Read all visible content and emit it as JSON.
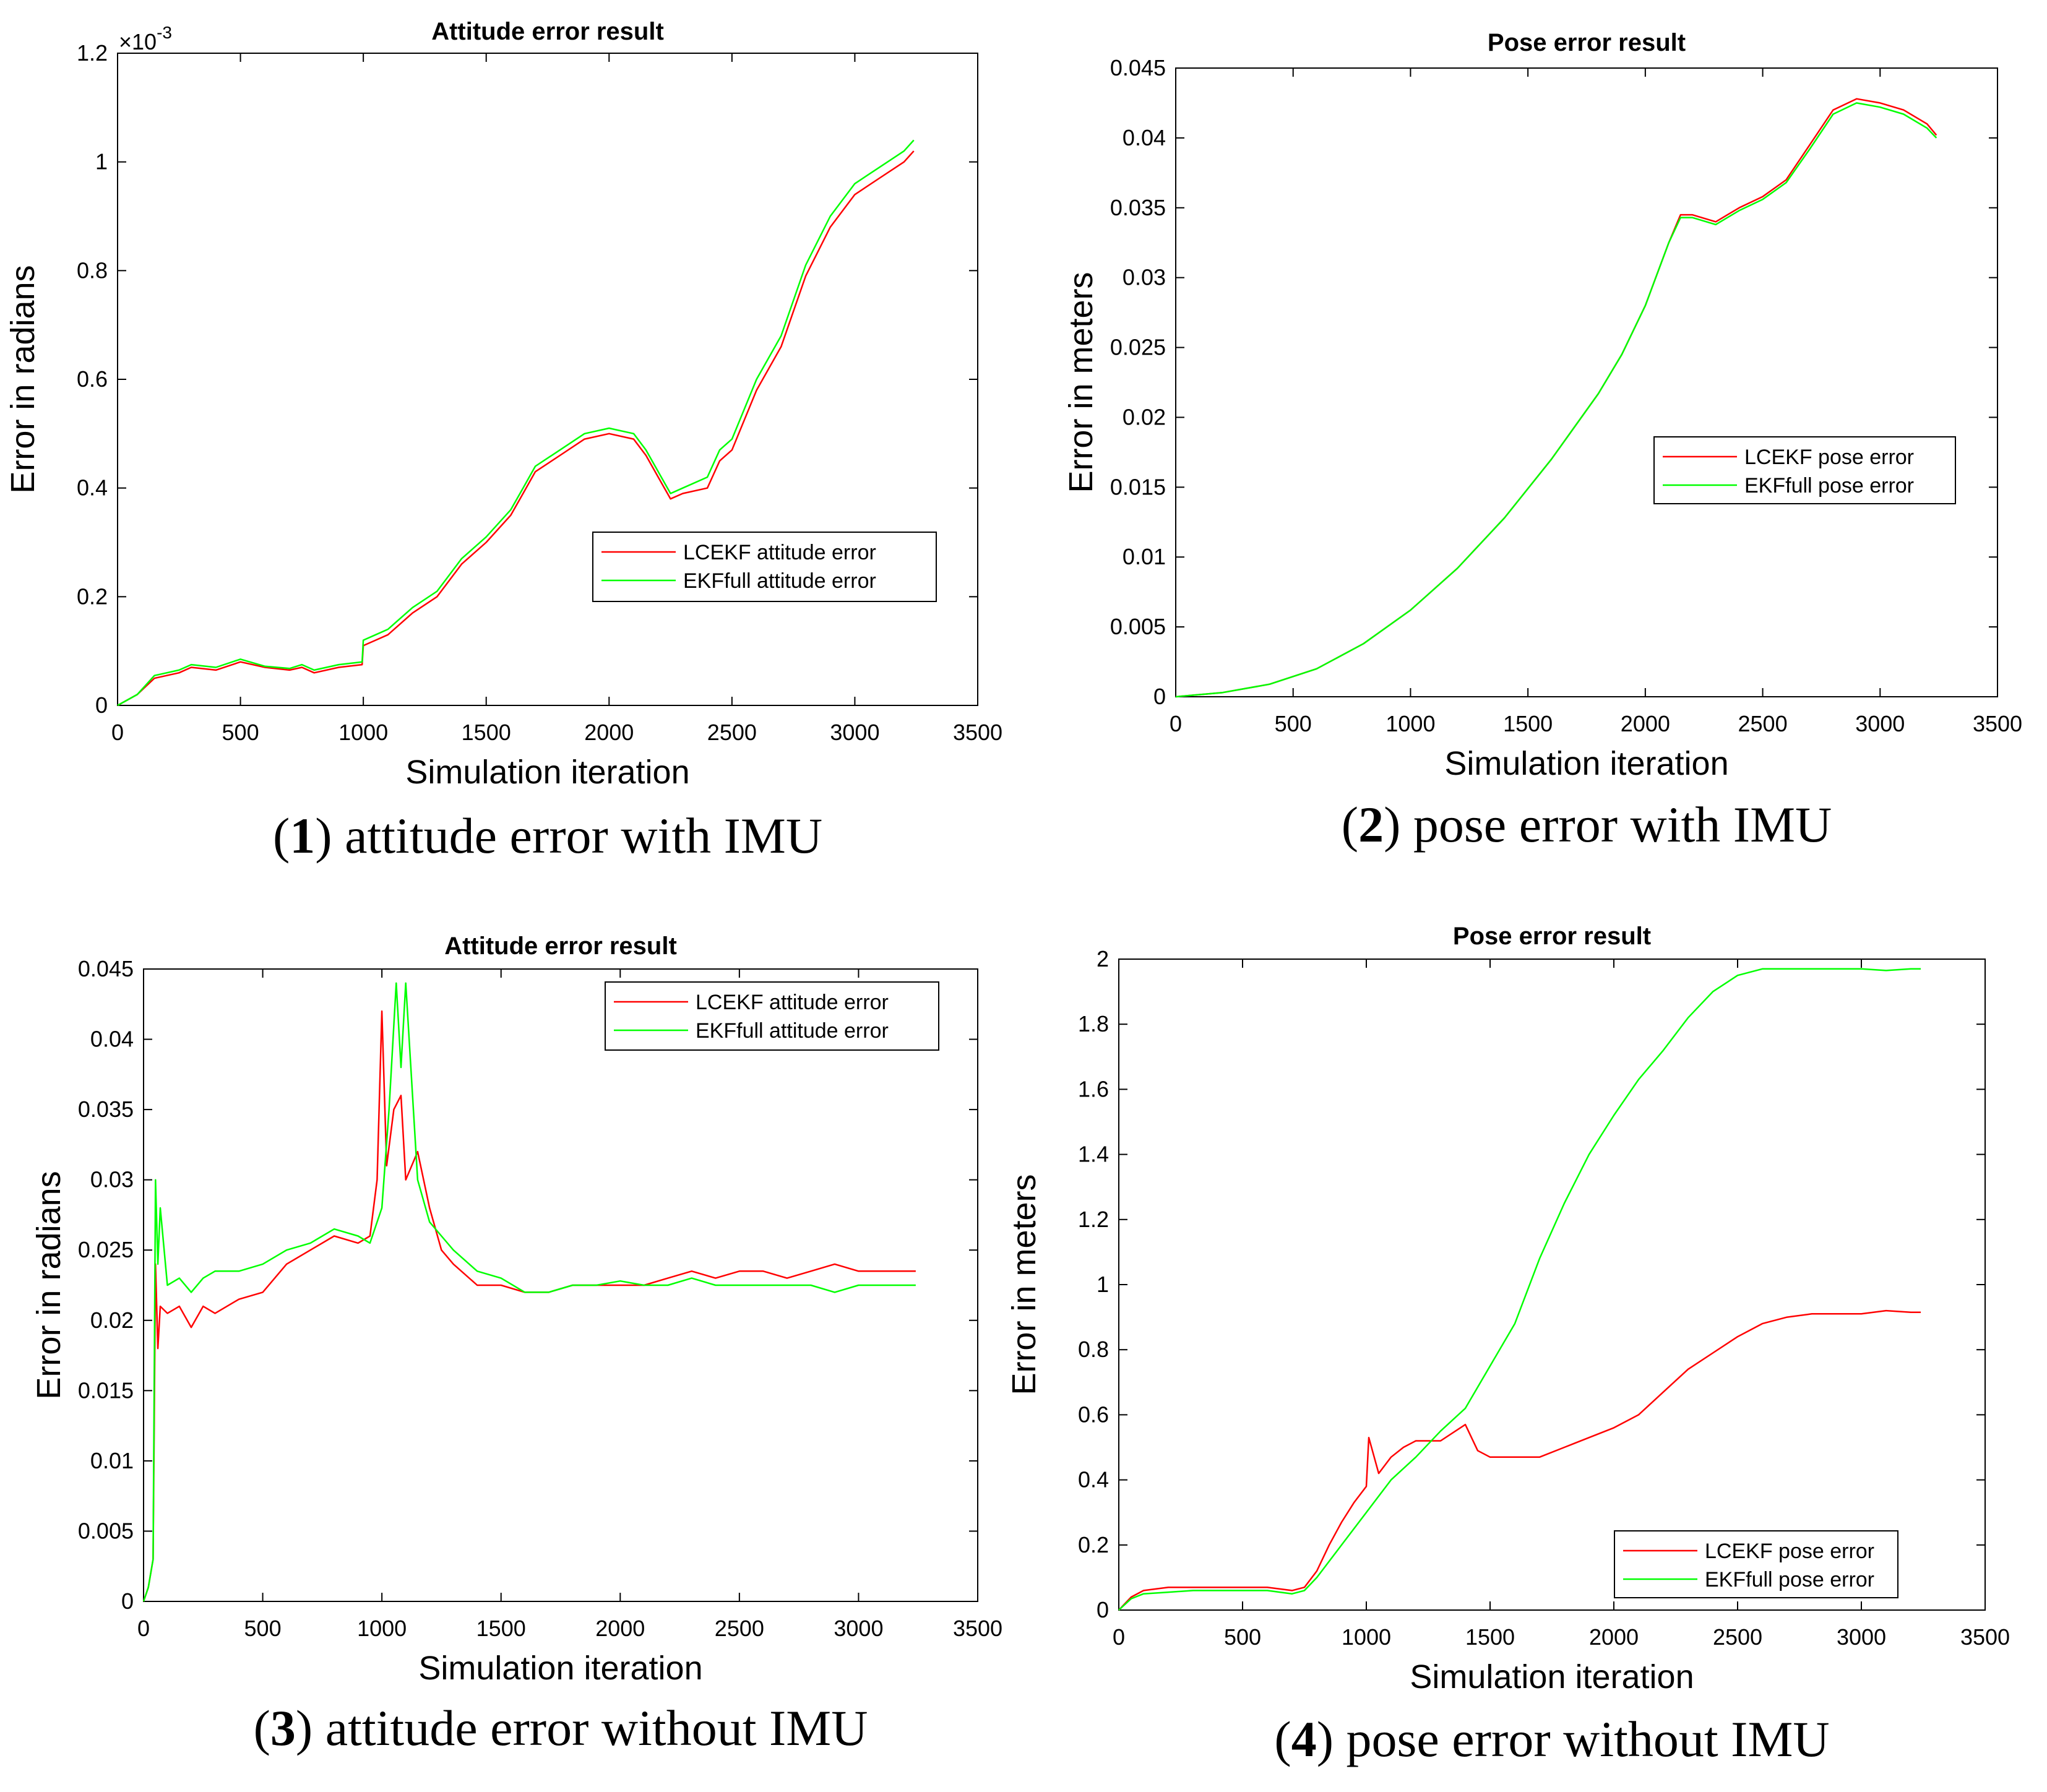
{
  "colors": {
    "lcekf": "#ff0000",
    "ekffull": "#00ff00",
    "axis": "#000000"
  },
  "chart_data": [
    {
      "type": "line",
      "title": "Attitude error result",
      "xlabel": "Simulation iteration",
      "ylabel": "Error in radians",
      "exponent": "10",
      "exponent_power": "-3",
      "times_symbol": "×",
      "xlim": [
        0,
        3500
      ],
      "ylim": [
        0,
        1.2
      ],
      "xticks": [
        0,
        500,
        1000,
        1500,
        2000,
        2500,
        3000,
        3500
      ],
      "xtick_labels": [
        "0",
        "500",
        "1000",
        "1500",
        "2000",
        "2500",
        "3000",
        "3500"
      ],
      "yticks": [
        0,
        0.2,
        0.4,
        0.6,
        0.8,
        1,
        1.2
      ],
      "ytick_labels": [
        "0",
        "0.2",
        "0.4",
        "0.6",
        "0.8",
        "1",
        "1.2"
      ],
      "legend_position": "lower-right",
      "caption_number": "1",
      "caption_text": "attitude error with IMU",
      "series": [
        {
          "name": "LCEKF attitude error",
          "color": "#ff0000",
          "x": [
            0,
            80,
            150,
            250,
            300,
            400,
            500,
            600,
            700,
            750,
            800,
            900,
            995,
            1000,
            1050,
            1100,
            1200,
            1300,
            1350,
            1400,
            1500,
            1600,
            1650,
            1700,
            1800,
            1900,
            2000,
            2100,
            2150,
            2200,
            2250,
            2300,
            2400,
            2450,
            2500,
            2600,
            2700,
            2800,
            2900,
            3000,
            3100,
            3200,
            3240
          ],
          "y": [
            0,
            0.02,
            0.05,
            0.06,
            0.07,
            0.065,
            0.08,
            0.07,
            0.065,
            0.07,
            0.06,
            0.07,
            0.075,
            0.11,
            0.12,
            0.13,
            0.17,
            0.2,
            0.23,
            0.26,
            0.3,
            0.35,
            0.39,
            0.43,
            0.46,
            0.49,
            0.5,
            0.49,
            0.46,
            0.42,
            0.38,
            0.39,
            0.4,
            0.45,
            0.47,
            0.58,
            0.66,
            0.79,
            0.88,
            0.94,
            0.97,
            1.0,
            1.02
          ]
        },
        {
          "name": "EKFfull attitude error",
          "color": "#00ff00",
          "x": [
            0,
            80,
            150,
            250,
            300,
            400,
            500,
            600,
            700,
            750,
            800,
            900,
            995,
            1000,
            1050,
            1100,
            1200,
            1300,
            1350,
            1400,
            1500,
            1600,
            1650,
            1700,
            1800,
            1900,
            2000,
            2100,
            2150,
            2200,
            2250,
            2300,
            2400,
            2450,
            2500,
            2600,
            2700,
            2800,
            2900,
            3000,
            3100,
            3200,
            3240
          ],
          "y": [
            0,
            0.02,
            0.055,
            0.065,
            0.075,
            0.07,
            0.085,
            0.072,
            0.068,
            0.075,
            0.065,
            0.075,
            0.08,
            0.12,
            0.13,
            0.14,
            0.18,
            0.21,
            0.24,
            0.27,
            0.31,
            0.36,
            0.4,
            0.44,
            0.47,
            0.5,
            0.51,
            0.5,
            0.47,
            0.43,
            0.39,
            0.4,
            0.42,
            0.47,
            0.49,
            0.6,
            0.68,
            0.81,
            0.9,
            0.96,
            0.99,
            1.02,
            1.04
          ]
        }
      ]
    },
    {
      "type": "line",
      "title": "Pose error result",
      "xlabel": "Simulation iteration",
      "ylabel": "Error in meters",
      "xlim": [
        0,
        3500
      ],
      "ylim": [
        0,
        0.045
      ],
      "xticks": [
        0,
        500,
        1000,
        1500,
        2000,
        2500,
        3000,
        3500
      ],
      "xtick_labels": [
        "0",
        "500",
        "1000",
        "1500",
        "2000",
        "2500",
        "3000",
        "3500"
      ],
      "yticks": [
        0,
        0.005,
        0.01,
        0.015,
        0.02,
        0.025,
        0.03,
        0.035,
        0.04,
        0.045
      ],
      "ytick_labels": [
        "0",
        "0.005",
        "0.01",
        "0.015",
        "0.02",
        "0.025",
        "0.03",
        "0.035",
        "0.04",
        "0.045"
      ],
      "legend_position": "middle-right",
      "caption_number": "2",
      "caption_text": "pose error with IMU",
      "series": [
        {
          "name": "LCEKF pose error",
          "color": "#ff0000",
          "x": [
            0,
            200,
            400,
            600,
            800,
            1000,
            1200,
            1400,
            1600,
            1800,
            1900,
            2000,
            2100,
            2150,
            2200,
            2300,
            2400,
            2500,
            2600,
            2700,
            2800,
            2900,
            3000,
            3100,
            3200,
            3240
          ],
          "y": [
            0,
            0.0003,
            0.0009,
            0.002,
            0.0038,
            0.0062,
            0.0092,
            0.0128,
            0.017,
            0.0217,
            0.0245,
            0.028,
            0.0325,
            0.0345,
            0.0345,
            0.034,
            0.035,
            0.0358,
            0.037,
            0.0395,
            0.042,
            0.0428,
            0.0425,
            0.042,
            0.041,
            0.0402
          ]
        },
        {
          "name": "EKFfull pose error",
          "color": "#00ff00",
          "x": [
            0,
            200,
            400,
            600,
            800,
            1000,
            1200,
            1400,
            1600,
            1800,
            1900,
            2000,
            2100,
            2150,
            2200,
            2300,
            2400,
            2500,
            2600,
            2700,
            2800,
            2900,
            3000,
            3100,
            3200,
            3240
          ],
          "y": [
            0,
            0.0003,
            0.0009,
            0.002,
            0.0038,
            0.0062,
            0.0092,
            0.0128,
            0.017,
            0.0217,
            0.0245,
            0.028,
            0.0325,
            0.0343,
            0.0343,
            0.0338,
            0.0348,
            0.0356,
            0.0368,
            0.0392,
            0.0417,
            0.0425,
            0.0422,
            0.0417,
            0.0407,
            0.04
          ]
        }
      ]
    },
    {
      "type": "line",
      "title": "Attitude error result",
      "xlabel": "Simulation iteration",
      "ylabel": "Error in radians",
      "xlim": [
        0,
        3500
      ],
      "ylim": [
        0,
        0.045
      ],
      "xticks": [
        0,
        500,
        1000,
        1500,
        2000,
        2500,
        3000,
        3500
      ],
      "xtick_labels": [
        "0",
        "500",
        "1000",
        "1500",
        "2000",
        "2500",
        "3000",
        "3500"
      ],
      "yticks": [
        0,
        0.005,
        0.01,
        0.015,
        0.02,
        0.025,
        0.03,
        0.035,
        0.04,
        0.045
      ],
      "ytick_labels": [
        "0",
        "0.005",
        "0.01",
        "0.015",
        "0.02",
        "0.025",
        "0.03",
        "0.035",
        "0.04",
        "0.045"
      ],
      "legend_position": "top-right",
      "caption_number": "3",
      "caption_text": "attitude error without IMU",
      "series": [
        {
          "name": "LCEKF attitude error",
          "color": "#ff0000",
          "x": [
            0,
            20,
            40,
            50,
            60,
            70,
            100,
            150,
            200,
            250,
            300,
            400,
            500,
            600,
            700,
            800,
            900,
            950,
            980,
            1000,
            1020,
            1050,
            1080,
            1100,
            1150,
            1200,
            1250,
            1300,
            1400,
            1500,
            1600,
            1700,
            1800,
            1900,
            2000,
            2100,
            2200,
            2300,
            2400,
            2500,
            2600,
            2700,
            2800,
            2900,
            3000,
            3100,
            3200,
            3240
          ],
          "y": [
            0,
            0.001,
            0.003,
            0.024,
            0.018,
            0.021,
            0.0205,
            0.021,
            0.0195,
            0.021,
            0.0205,
            0.0215,
            0.022,
            0.024,
            0.025,
            0.026,
            0.0255,
            0.026,
            0.03,
            0.042,
            0.031,
            0.035,
            0.036,
            0.03,
            0.032,
            0.028,
            0.025,
            0.024,
            0.0225,
            0.0225,
            0.022,
            0.022,
            0.0225,
            0.0225,
            0.0225,
            0.0225,
            0.023,
            0.0235,
            0.023,
            0.0235,
            0.0235,
            0.023,
            0.0235,
            0.024,
            0.0235,
            0.0235,
            0.0235,
            0.0235
          ]
        },
        {
          "name": "EKFfull attitude error",
          "color": "#00ff00",
          "x": [
            0,
            20,
            40,
            50,
            60,
            70,
            100,
            150,
            200,
            250,
            300,
            400,
            500,
            600,
            700,
            800,
            900,
            950,
            1000,
            1030,
            1060,
            1080,
            1100,
            1150,
            1200,
            1250,
            1300,
            1400,
            1500,
            1600,
            1700,
            1800,
            1900,
            2000,
            2100,
            2200,
            2300,
            2400,
            2500,
            2600,
            2700,
            2800,
            2900,
            3000,
            3100,
            3200,
            3240
          ],
          "y": [
            0,
            0.001,
            0.003,
            0.03,
            0.024,
            0.028,
            0.0225,
            0.023,
            0.022,
            0.023,
            0.0235,
            0.0235,
            0.024,
            0.025,
            0.0255,
            0.0265,
            0.026,
            0.0255,
            0.028,
            0.035,
            0.044,
            0.038,
            0.044,
            0.03,
            0.027,
            0.026,
            0.025,
            0.0235,
            0.023,
            0.022,
            0.022,
            0.0225,
            0.0225,
            0.0228,
            0.0225,
            0.0225,
            0.023,
            0.0225,
            0.0225,
            0.0225,
            0.0225,
            0.0225,
            0.022,
            0.0225,
            0.0225,
            0.0225,
            0.0225
          ]
        }
      ]
    },
    {
      "type": "line",
      "title": "Pose error result",
      "xlabel": "Simulation iteration",
      "ylabel": "Error in meters",
      "xlim": [
        0,
        3500
      ],
      "ylim": [
        0,
        2
      ],
      "xticks": [
        0,
        500,
        1000,
        1500,
        2000,
        2500,
        3000,
        3500
      ],
      "xtick_labels": [
        "0",
        "500",
        "1000",
        "1500",
        "2000",
        "2500",
        "3000",
        "3500"
      ],
      "yticks": [
        0,
        0.2,
        0.4,
        0.6,
        0.8,
        1,
        1.2,
        1.4,
        1.6,
        1.8,
        2
      ],
      "ytick_labels": [
        "0",
        "0.2",
        "0.4",
        "0.6",
        "0.8",
        "1",
        "1.2",
        "1.4",
        "1.6",
        "1.8",
        "2"
      ],
      "legend_position": "bottom-right",
      "caption_number": "4",
      "caption_text": "pose error without IMU",
      "series": [
        {
          "name": "LCEKF pose error",
          "color": "#ff0000",
          "x": [
            0,
            50,
            100,
            200,
            300,
            400,
            500,
            600,
            700,
            750,
            800,
            850,
            900,
            950,
            1000,
            1010,
            1050,
            1100,
            1150,
            1200,
            1300,
            1400,
            1450,
            1500,
            1600,
            1700,
            1800,
            1900,
            2000,
            2100,
            2200,
            2300,
            2400,
            2500,
            2600,
            2700,
            2800,
            2900,
            3000,
            3100,
            3200,
            3240
          ],
          "y": [
            0,
            0.04,
            0.06,
            0.07,
            0.07,
            0.07,
            0.07,
            0.07,
            0.06,
            0.07,
            0.12,
            0.2,
            0.27,
            0.33,
            0.38,
            0.53,
            0.42,
            0.47,
            0.5,
            0.52,
            0.52,
            0.57,
            0.49,
            0.47,
            0.47,
            0.47,
            0.5,
            0.53,
            0.56,
            0.6,
            0.67,
            0.74,
            0.79,
            0.84,
            0.88,
            0.9,
            0.91,
            0.91,
            0.91,
            0.92,
            0.915,
            0.915
          ]
        },
        {
          "name": "EKFfull pose error",
          "color": "#00ff00",
          "x": [
            0,
            50,
            100,
            200,
            300,
            400,
            500,
            600,
            700,
            750,
            800,
            900,
            1000,
            1100,
            1200,
            1300,
            1400,
            1500,
            1600,
            1700,
            1800,
            1900,
            2000,
            2100,
            2200,
            2300,
            2400,
            2500,
            2600,
            2700,
            2800,
            2900,
            3000,
            3100,
            3200,
            3240
          ],
          "y": [
            0,
            0.035,
            0.05,
            0.055,
            0.06,
            0.06,
            0.06,
            0.06,
            0.05,
            0.06,
            0.1,
            0.2,
            0.3,
            0.4,
            0.47,
            0.55,
            0.62,
            0.75,
            0.88,
            1.08,
            1.25,
            1.4,
            1.52,
            1.63,
            1.72,
            1.82,
            1.9,
            1.95,
            1.97,
            1.97,
            1.97,
            1.97,
            1.97,
            1.965,
            1.97,
            1.97
          ]
        }
      ]
    }
  ]
}
